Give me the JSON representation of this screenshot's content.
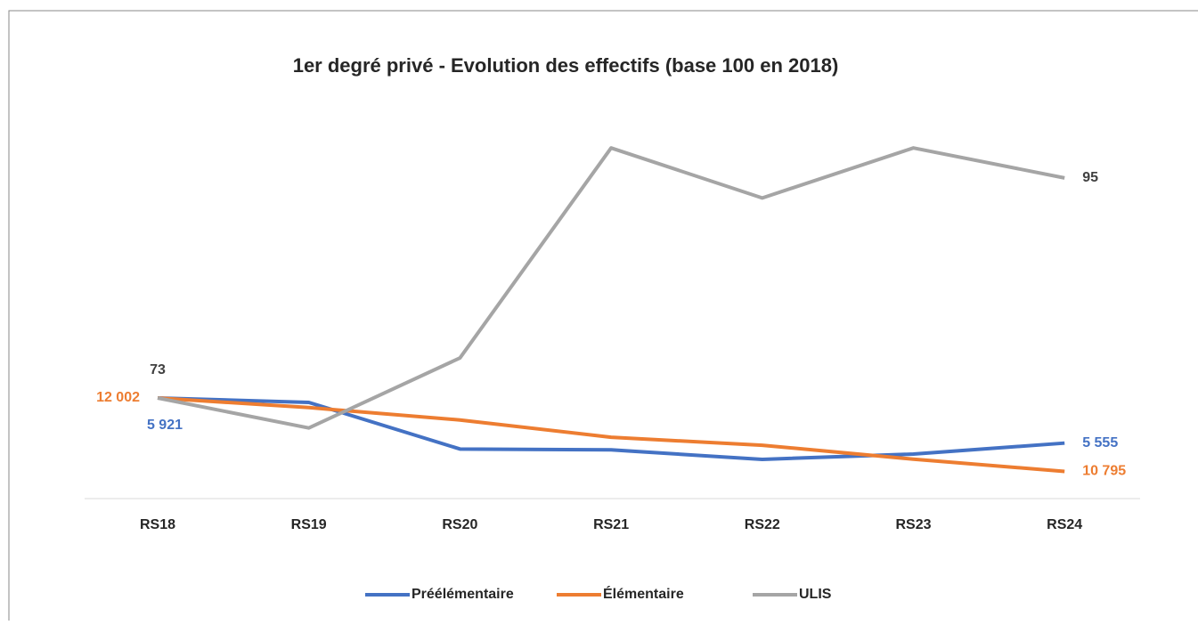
{
  "chart_data": {
    "type": "line",
    "title": "1er degré privé - Evolution des effectifs (base 100 en 2018)",
    "categories": [
      "RS18",
      "RS19",
      "RS20",
      "RS21",
      "RS22",
      "RS23",
      "RS24"
    ],
    "legend": "bottom",
    "series": [
      {
        "name": "Préélémentaire",
        "color": "#4472c4",
        "label_color": "#4472c4",
        "values": [
          5921,
          5885,
          5507,
          5500,
          5423,
          5466,
          5555
        ],
        "value_labels": [
          "5 921",
          null,
          null,
          null,
          null,
          null,
          "5 555"
        ]
      },
      {
        "name": "Élémentaire",
        "color": "#ed7d31",
        "label_color": "#ed7d31",
        "values": [
          12002,
          11844,
          11640,
          11356,
          11225,
          10996,
          10795
        ],
        "value_labels": [
          "12 002",
          null,
          null,
          null,
          null,
          null,
          "10 795"
        ]
      },
      {
        "name": "ULIS",
        "color": "#a5a5a5",
        "label_color": "#404040",
        "values": [
          73,
          70,
          77,
          98,
          93,
          98,
          95
        ],
        "value_labels": [
          "73",
          null,
          null,
          null,
          null,
          null,
          "95"
        ]
      }
    ]
  }
}
